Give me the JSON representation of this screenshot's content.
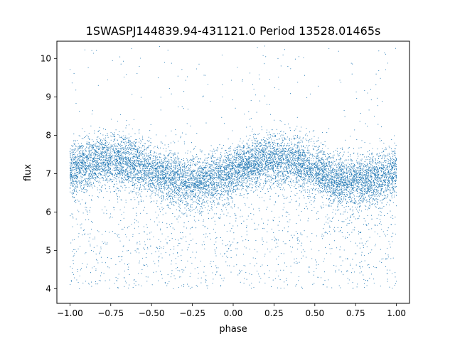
{
  "chart_data": {
    "type": "scatter",
    "title": "1SWASPJ144839.94-431121.0 Period 13528.01465s",
    "xlabel": "phase",
    "ylabel": "flux",
    "xlim": [
      -1.08,
      1.08
    ],
    "ylim": [
      3.62,
      10.45
    ],
    "xticks": [
      -1.0,
      -0.75,
      -0.5,
      -0.25,
      0.0,
      0.25,
      0.5,
      0.75,
      1.0
    ],
    "xtick_labels": [
      "−1.00",
      "−0.75",
      "−0.50",
      "−0.25",
      "0.00",
      "0.25",
      "0.50",
      "0.75",
      "1.00"
    ],
    "yticks": [
      4,
      5,
      6,
      7,
      8,
      9,
      10
    ],
    "ytick_labels": [
      "4",
      "5",
      "6",
      "7",
      "8",
      "9",
      "10"
    ],
    "grid": false,
    "legend": "none",
    "point_color": "#1f77b4",
    "phase_range": [
      -1.0,
      1.0
    ],
    "point_count_estimate": 12000,
    "approx_points": [
      {
        "x": -1.0,
        "y": 7.15
      },
      {
        "x": -0.75,
        "y": 7.35
      },
      {
        "x": -0.5,
        "y": 7.05
      },
      {
        "x": -0.25,
        "y": 6.75
      },
      {
        "x": 0.0,
        "y": 7.15
      },
      {
        "x": 0.25,
        "y": 7.35
      },
      {
        "x": 0.5,
        "y": 7.05
      },
      {
        "x": 0.75,
        "y": 6.75
      },
      {
        "x": 1.0,
        "y": 7.15
      }
    ]
  }
}
